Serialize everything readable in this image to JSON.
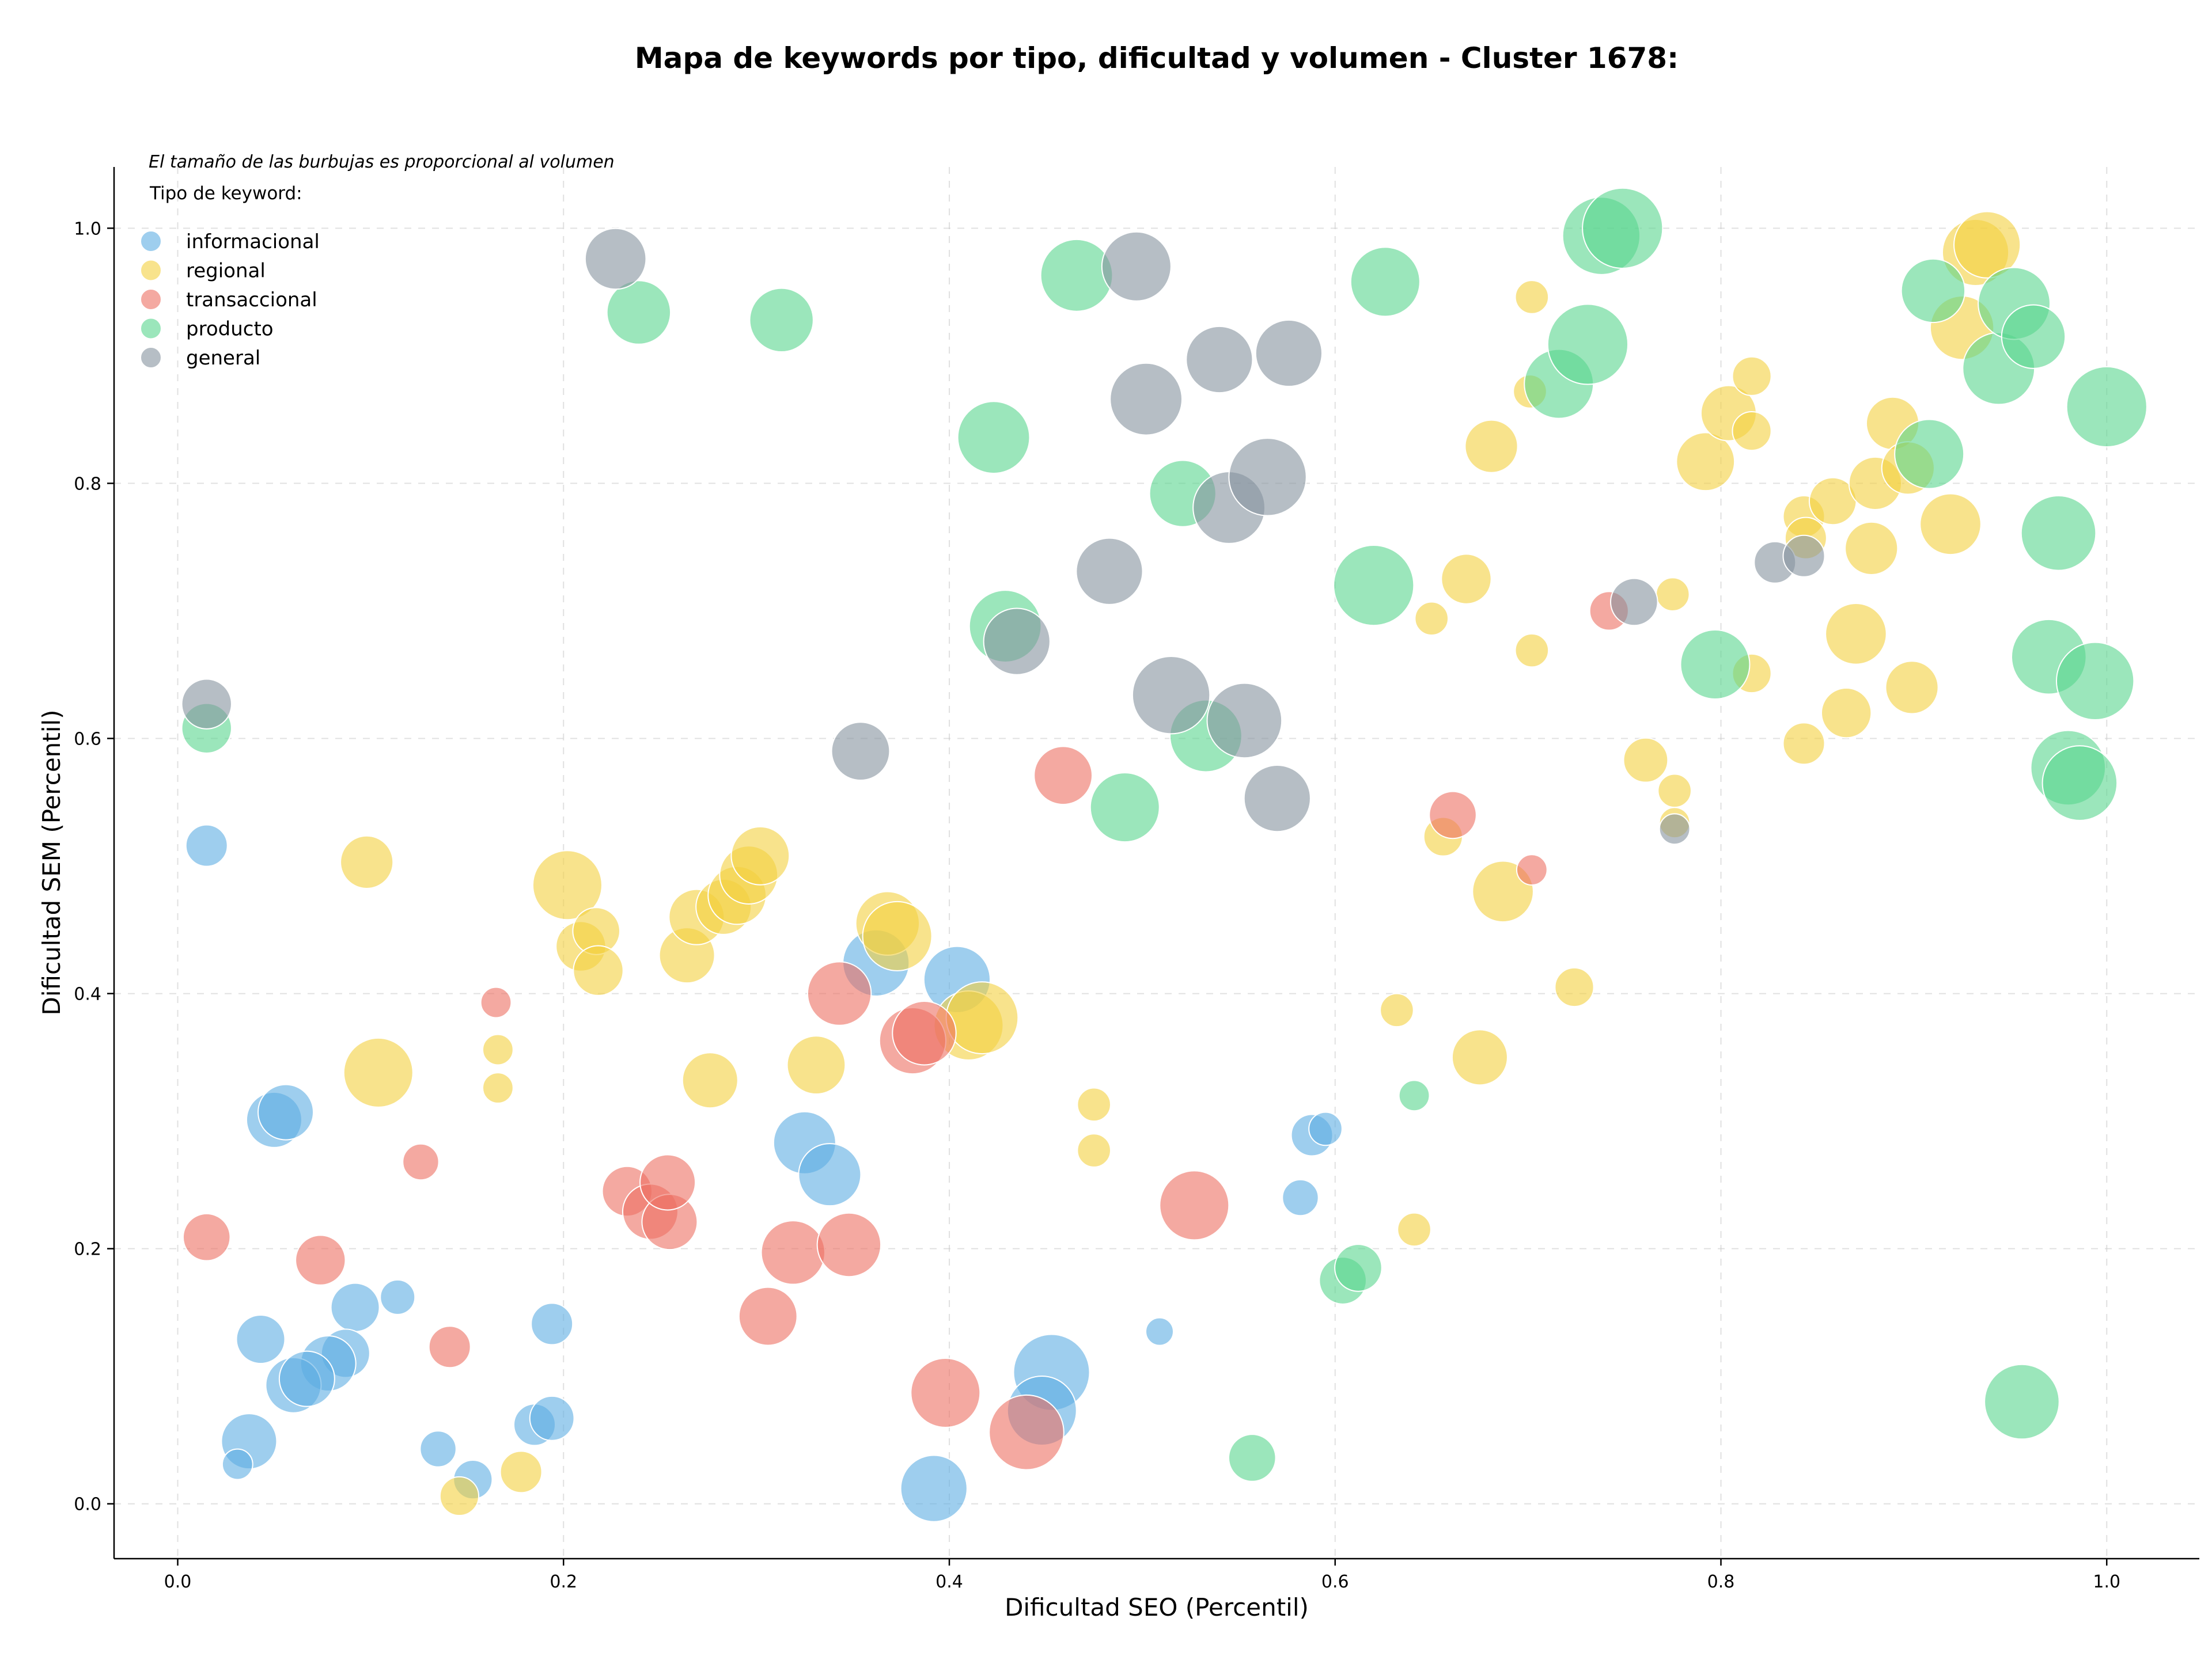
{
  "chart_data": {
    "type": "scatter",
    "title": "Mapa de keywords por tipo, dificultad y volumen - Cluster 1678:",
    "xlabel": "Dificultad SEO (Percentil)",
    "ylabel": "Dificultad SEM (Percentil)",
    "xlim": [
      -0.033,
      1.048
    ],
    "ylim": [
      -0.043,
      1.048
    ],
    "xticks": [
      "0.0",
      "0.2",
      "0.4",
      "0.6",
      "0.8",
      "1.0"
    ],
    "yticks": [
      "0.0",
      "0.2",
      "0.4",
      "0.6",
      "0.8",
      "1.0"
    ],
    "grid": true,
    "annotation": "El tamaño de las burbujas es proporcional al volumen",
    "legend": {
      "title": "Tipo de keyword:",
      "position": "top-left"
    },
    "series": [
      {
        "name": "informacional",
        "color": "#5dade2",
        "points": [
          [
            0.015,
            0.516,
            3
          ],
          [
            0.05,
            0.301,
            4
          ],
          [
            0.056,
            0.307,
            4
          ],
          [
            0.092,
            0.154,
            3.5
          ],
          [
            0.114,
            0.162,
            2.5
          ],
          [
            0.043,
            0.129,
            3.5
          ],
          [
            0.087,
            0.118,
            3.5
          ],
          [
            0.078,
            0.11,
            4
          ],
          [
            0.06,
            0.093,
            4
          ],
          [
            0.067,
            0.098,
            4
          ],
          [
            0.037,
            0.049,
            4
          ],
          [
            0.031,
            0.031,
            2.2
          ],
          [
            0.135,
            0.043,
            2.6
          ],
          [
            0.153,
            0.019,
            2.8
          ],
          [
            0.185,
            0.062,
            3
          ],
          [
            0.194,
            0.067,
            3.2
          ],
          [
            0.194,
            0.141,
            3
          ],
          [
            0.325,
            0.283,
            4.5
          ],
          [
            0.338,
            0.258,
            4.5
          ],
          [
            0.362,
            0.424,
            4.8
          ],
          [
            0.404,
            0.411,
            4.8
          ],
          [
            0.392,
            0.012,
            4.8
          ],
          [
            0.453,
            0.103,
            5.5
          ],
          [
            0.448,
            0.073,
            5
          ],
          [
            0.509,
            0.135,
            2
          ],
          [
            0.588,
            0.289,
            3
          ],
          [
            0.595,
            0.294,
            2.4
          ],
          [
            0.582,
            0.24,
            2.6
          ]
        ]
      },
      {
        "name": "regional",
        "color": "#f4d03f",
        "points": [
          [
            0.098,
            0.503,
            3.8
          ],
          [
            0.104,
            0.338,
            5
          ],
          [
            0.166,
            0.356,
            2.2
          ],
          [
            0.166,
            0.326,
            2.2
          ],
          [
            0.202,
            0.485,
            5
          ],
          [
            0.209,
            0.437,
            3.6
          ],
          [
            0.217,
            0.449,
            3.4
          ],
          [
            0.218,
            0.418,
            3.6
          ],
          [
            0.264,
            0.43,
            4
          ],
          [
            0.269,
            0.46,
            4
          ],
          [
            0.283,
            0.468,
            4
          ],
          [
            0.29,
            0.477,
            4.2
          ],
          [
            0.296,
            0.493,
            4.2
          ],
          [
            0.302,
            0.508,
            4.2
          ],
          [
            0.276,
            0.332,
            4
          ],
          [
            0.331,
            0.344,
            4.2
          ],
          [
            0.368,
            0.455,
            4.6
          ],
          [
            0.373,
            0.445,
            5
          ],
          [
            0.41,
            0.375,
            5
          ],
          [
            0.417,
            0.381,
            5.2
          ],
          [
            0.475,
            0.313,
            2.4
          ],
          [
            0.475,
            0.277,
            2.4
          ],
          [
            0.146,
            0.006,
            2.8
          ],
          [
            0.178,
            0.025,
            3
          ],
          [
            0.632,
            0.387,
            2.4
          ],
          [
            0.641,
            0.215,
            2.4
          ],
          [
            0.65,
            0.694,
            2.4
          ],
          [
            0.656,
            0.523,
            2.8
          ],
          [
            0.668,
            0.725,
            3.6
          ],
          [
            0.675,
            0.35,
            4
          ],
          [
            0.681,
            0.829,
            3.8
          ],
          [
            0.687,
            0.48,
            4.4
          ],
          [
            0.701,
            0.872,
            2.4
          ],
          [
            0.702,
            0.946,
            2.4
          ],
          [
            0.702,
            0.669,
            2.4
          ],
          [
            0.724,
            0.405,
            2.8
          ],
          [
            0.761,
            0.583,
            3.2
          ],
          [
            0.775,
            0.713,
            2.4
          ],
          [
            0.776,
            0.559,
            2.4
          ],
          [
            0.776,
            0.534,
            2.2
          ],
          [
            0.792,
            0.817,
            4.2
          ],
          [
            0.804,
            0.855,
            4
          ],
          [
            0.816,
            0.884,
            2.8
          ],
          [
            0.816,
            0.841,
            2.8
          ],
          [
            0.816,
            0.651,
            2.8
          ],
          [
            0.843,
            0.596,
            3
          ],
          [
            0.843,
            0.774,
            3
          ],
          [
            0.844,
            0.757,
            3
          ],
          [
            0.858,
            0.786,
            3.4
          ],
          [
            0.865,
            0.62,
            3.6
          ],
          [
            0.87,
            0.682,
            4.4
          ],
          [
            0.878,
            0.749,
            3.8
          ],
          [
            0.88,
            0.8,
            3.8
          ],
          [
            0.889,
            0.847,
            3.8
          ],
          [
            0.897,
            0.812,
            3.8
          ],
          [
            0.899,
            0.64,
            3.8
          ],
          [
            0.919,
            0.768,
            4.4
          ],
          [
            0.925,
            0.922,
            4.6
          ],
          [
            0.932,
            0.981,
            4.8
          ],
          [
            0.938,
            0.987,
            4.8
          ]
        ]
      },
      {
        "name": "transaccional",
        "color": "#ec7063",
        "points": [
          [
            0.015,
            0.209,
            3.4
          ],
          [
            0.074,
            0.191,
            3.6
          ],
          [
            0.126,
            0.268,
            2.6
          ],
          [
            0.141,
            0.123,
            3
          ],
          [
            0.165,
            0.393,
            2.2
          ],
          [
            0.233,
            0.245,
            3.6
          ],
          [
            0.245,
            0.229,
            4
          ],
          [
            0.255,
            0.221,
            4
          ],
          [
            0.254,
            0.252,
            4
          ],
          [
            0.306,
            0.147,
            4.2
          ],
          [
            0.319,
            0.197,
            4.6
          ],
          [
            0.348,
            0.203,
            4.6
          ],
          [
            0.343,
            0.4,
            4.6
          ],
          [
            0.381,
            0.363,
            4.8
          ],
          [
            0.387,
            0.369,
            4.6
          ],
          [
            0.398,
            0.087,
            5
          ],
          [
            0.44,
            0.056,
            5.4
          ],
          [
            0.459,
            0.571,
            4.2
          ],
          [
            0.527,
            0.234,
            5
          ],
          [
            0.661,
            0.54,
            3.4
          ],
          [
            0.702,
            0.497,
            2.2
          ],
          [
            0.742,
            0.7,
            2.8
          ]
        ]
      },
      {
        "name": "producto",
        "color": "#58d68d",
        "points": [
          [
            0.015,
            0.608,
            3.6
          ],
          [
            0.239,
            0.934,
            4.6
          ],
          [
            0.313,
            0.928,
            4.6
          ],
          [
            0.423,
            0.836,
            5.2
          ],
          [
            0.429,
            0.688,
            5.2
          ],
          [
            0.466,
            0.963,
            5.2
          ],
          [
            0.491,
            0.546,
            5
          ],
          [
            0.521,
            0.792,
            4.8
          ],
          [
            0.533,
            0.602,
            5.2
          ],
          [
            0.557,
            0.036,
            3.4
          ],
          [
            0.604,
            0.175,
            3.4
          ],
          [
            0.612,
            0.185,
            3.4
          ],
          [
            0.62,
            0.72,
            5.8
          ],
          [
            0.626,
            0.958,
            5
          ],
          [
            0.641,
            0.32,
            2.2
          ],
          [
            0.716,
            0.878,
            5
          ],
          [
            0.731,
            0.909,
            5.8
          ],
          [
            0.738,
            0.994,
            5.6
          ],
          [
            0.749,
            1.0,
            5.8
          ],
          [
            0.797,
            0.658,
            5
          ],
          [
            0.91,
            0.951,
            4.6
          ],
          [
            0.908,
            0.823,
            5
          ],
          [
            0.944,
            0.89,
            5.2
          ],
          [
            0.952,
            0.941,
            5.2
          ],
          [
            0.962,
            0.915,
            4.6
          ],
          [
            0.956,
            0.08,
            5.4
          ],
          [
            0.975,
            0.761,
            5.4
          ],
          [
            0.97,
            0.664,
            5.4
          ],
          [
            0.98,
            0.577,
            5.4
          ],
          [
            0.986,
            0.565,
            5.4
          ],
          [
            0.994,
            0.645,
            5.6
          ],
          [
            1.0,
            0.86,
            5.8
          ]
        ]
      },
      {
        "name": "general",
        "color": "#85929e",
        "points": [
          [
            0.015,
            0.627,
            3.6
          ],
          [
            0.227,
            0.976,
            4.4
          ],
          [
            0.354,
            0.59,
            4.2
          ],
          [
            0.435,
            0.676,
            4.8
          ],
          [
            0.483,
            0.731,
            4.8
          ],
          [
            0.497,
            0.97,
            5
          ],
          [
            0.502,
            0.866,
            5.2
          ],
          [
            0.54,
            0.897,
            4.8
          ],
          [
            0.545,
            0.781,
            5.2
          ],
          [
            0.515,
            0.634,
            5.6
          ],
          [
            0.553,
            0.614,
            5.4
          ],
          [
            0.565,
            0.805,
            5.6
          ],
          [
            0.57,
            0.553,
            4.8
          ],
          [
            0.576,
            0.902,
            4.8
          ],
          [
            0.755,
            0.707,
            3.4
          ],
          [
            0.776,
            0.529,
            2.2
          ],
          [
            0.828,
            0.738,
            3
          ],
          [
            0.843,
            0.743,
            3
          ]
        ]
      }
    ]
  }
}
